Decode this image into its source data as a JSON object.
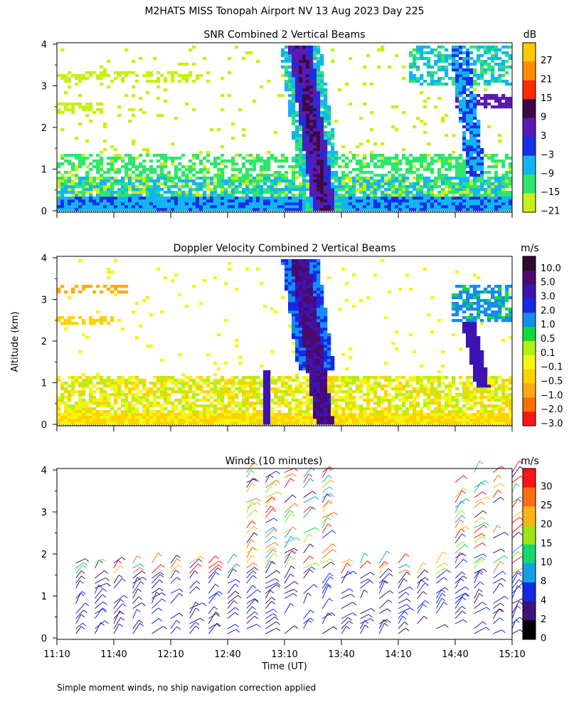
{
  "figure": {
    "title": "M2HATS MISS Tonopah Airport NV  13 Aug 2023 Day 225",
    "ylabel": "Altitude (km)",
    "xlabel": "Time (UT)",
    "footnote": "Simple moment winds, no ship navigation correction applied",
    "time_ticks": [
      "11:10",
      "11:40",
      "12:10",
      "12:40",
      "13:10",
      "13:40",
      "14:10",
      "14:40",
      "15:10"
    ],
    "alt_ticks": [
      "0",
      "1",
      "2",
      "3",
      "4"
    ]
  },
  "chart_data": [
    {
      "type": "heatmap",
      "title": "SNR Combined 2 Vertical Beams",
      "unit": "dB",
      "ylim": [
        0,
        4
      ],
      "colorbar": {
        "labels": [
          "27",
          "21",
          "15",
          "9",
          "3",
          "−3",
          "−9",
          "−15",
          "−21"
        ],
        "colors": [
          "#ffc800",
          "#ff8c00",
          "#ff2a00",
          "#3c0a46",
          "#5a1ab4",
          "#1430e6",
          "#14b4f0",
          "#2ee66e",
          "#c8f014"
        ]
      }
    },
    {
      "type": "heatmap",
      "title": "Doppler Velocity Combined 2 Vertical Beams",
      "unit": "m/s",
      "ylim": [
        0,
        4
      ],
      "colorbar": {
        "labels": [
          "10.0",
          "5.0",
          "3.0",
          "2.0",
          "1.0",
          "0.5",
          "0.1",
          "−0.1",
          "−0.5",
          "−1.0",
          "−2.0",
          "−3.0"
        ],
        "colors": [
          "#2e0a2e",
          "#4b0a6e",
          "#3c14b4",
          "#1428e6",
          "#148cf0",
          "#14d83c",
          "#b4f014",
          "#f5f514",
          "#ffd200",
          "#ffaa14",
          "#ff6e00",
          "#ff1414"
        ]
      }
    },
    {
      "type": "scatter",
      "title": "Winds (10 minutes)",
      "unit": "m/s",
      "ylim": [
        0,
        4
      ],
      "colorbar": {
        "labels": [
          "30",
          "25",
          "20",
          "15",
          "10",
          "8",
          "4",
          "2",
          "0"
        ],
        "colors": [
          "#ff1414",
          "#ff6e14",
          "#ffb414",
          "#9ee614",
          "#14d86e",
          "#14a0e6",
          "#1428e6",
          "#3c1478",
          "#000000"
        ]
      }
    }
  ]
}
